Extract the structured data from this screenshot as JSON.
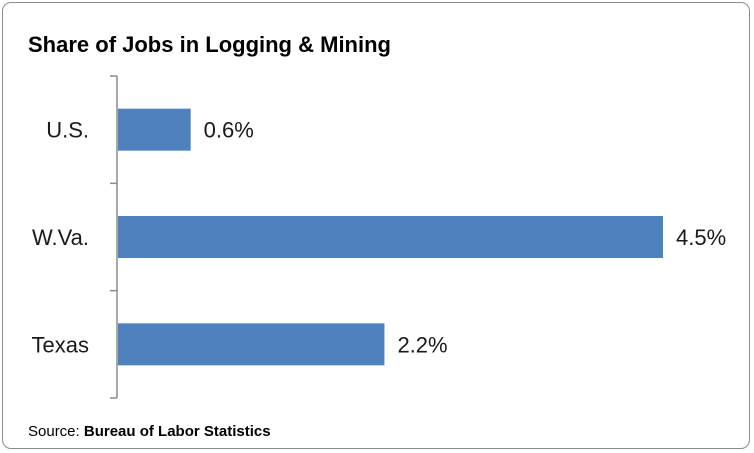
{
  "chart_data": {
    "type": "bar",
    "orientation": "horizontal",
    "title": "Share of Jobs in Logging & Mining",
    "categories": [
      "U.S.",
      "W.Va.",
      "Texas"
    ],
    "values": [
      0.6,
      4.5,
      2.2
    ],
    "value_labels": [
      "0.6%",
      "4.5%",
      "2.2%"
    ],
    "xlabel": "",
    "ylabel": "",
    "xlim": [
      0,
      4.5
    ],
    "grid": false,
    "legend": "none",
    "bar_color": "#4f81bd",
    "axis_color": "#8c8c8c"
  },
  "source": {
    "prefix": "Source: ",
    "name": "Bureau of Labor Statistics"
  }
}
